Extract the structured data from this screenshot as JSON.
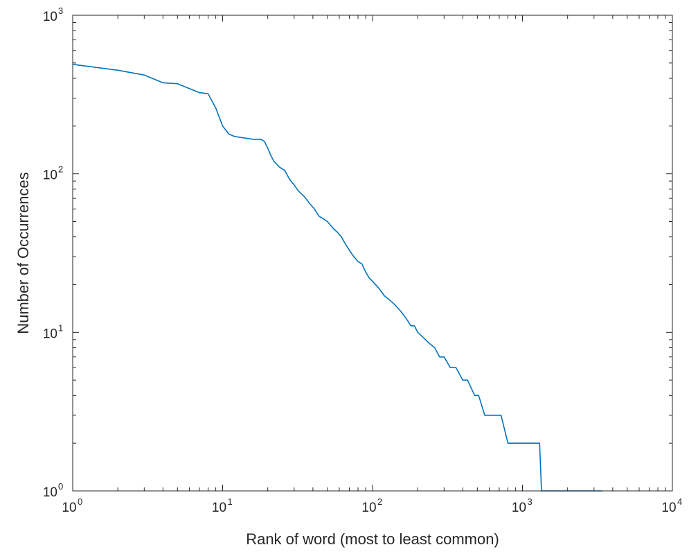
{
  "chart_data": {
    "type": "line",
    "title": "",
    "xlabel": "Rank of word (most to least common)",
    "ylabel": "Number of Occurrences",
    "xscale": "log",
    "yscale": "log",
    "xlim": [
      1,
      10000
    ],
    "ylim": [
      1,
      1000
    ],
    "grid": false,
    "legend": "none",
    "line_color": "#0072BD",
    "x_ticks": [
      {
        "base": "10",
        "exp": "0",
        "value": 1
      },
      {
        "base": "10",
        "exp": "1",
        "value": 10
      },
      {
        "base": "10",
        "exp": "2",
        "value": 100
      },
      {
        "base": "10",
        "exp": "3",
        "value": 1000
      },
      {
        "base": "10",
        "exp": "4",
        "value": 10000
      }
    ],
    "y_ticks": [
      {
        "base": "10",
        "exp": "0",
        "value": 1
      },
      {
        "base": "10",
        "exp": "1",
        "value": 10
      },
      {
        "base": "10",
        "exp": "2",
        "value": 100
      },
      {
        "base": "10",
        "exp": "3",
        "value": 1000
      }
    ],
    "series": [
      {
        "x": [
          1,
          2,
          3,
          4,
          5,
          6,
          7,
          8,
          9,
          10,
          11,
          12,
          14,
          16,
          18,
          19,
          20,
          21,
          22,
          24,
          26,
          28,
          30,
          32,
          35,
          38,
          41,
          44,
          47,
          50,
          55,
          58,
          62,
          66,
          70,
          75,
          80,
          85,
          90,
          95,
          100,
          110,
          120,
          130,
          140,
          150,
          160,
          170,
          180,
          190,
          200,
          220,
          240,
          260,
          280,
          300,
          330,
          360,
          400,
          430,
          480,
          510,
          560,
          610,
          660,
          720,
          800,
          860,
          930,
          1000,
          1100,
          1200,
          1300,
          1340,
          1400,
          1500,
          2000,
          2500,
          3000,
          3400
        ],
        "y": [
          490,
          450,
          420,
          375,
          370,
          345,
          325,
          320,
          260,
          200,
          178,
          172,
          168,
          165,
          165,
          160,
          145,
          130,
          120,
          110,
          105,
          92,
          85,
          78,
          72,
          65,
          60,
          54,
          52,
          50,
          45,
          43,
          40,
          36,
          33,
          30,
          28,
          27,
          24,
          22,
          21,
          19,
          17,
          16,
          15,
          14,
          13,
          12,
          11,
          11,
          10,
          9.2,
          8.5,
          8,
          7,
          7,
          6,
          6,
          5,
          5,
          4,
          4,
          3,
          3,
          3,
          3,
          2,
          2,
          2,
          2,
          2,
          2,
          2,
          1,
          1,
          1,
          1,
          1,
          1,
          1
        ]
      }
    ]
  }
}
